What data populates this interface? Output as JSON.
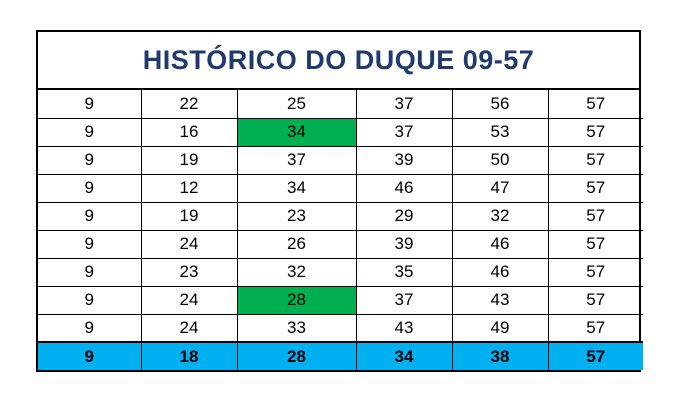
{
  "sheet": {
    "title": "HISTÓRICO DO DUQUE 09-57",
    "colors": {
      "title_text": "#1f3a6e",
      "highlight_green": "#00b050",
      "summary_row": "#00b0f0",
      "border": "#000000"
    },
    "rows": [
      {
        "cells": [
          "9",
          "22",
          "25",
          "37",
          "56",
          "57"
        ],
        "highlight": []
      },
      {
        "cells": [
          "9",
          "16",
          "34",
          "37",
          "53",
          "57"
        ],
        "highlight": [
          2
        ]
      },
      {
        "cells": [
          "9",
          "19",
          "37",
          "39",
          "50",
          "57"
        ],
        "highlight": []
      },
      {
        "cells": [
          "9",
          "12",
          "34",
          "46",
          "47",
          "57"
        ],
        "highlight": []
      },
      {
        "cells": [
          "9",
          "19",
          "23",
          "29",
          "32",
          "57"
        ],
        "highlight": []
      },
      {
        "cells": [
          "9",
          "24",
          "26",
          "39",
          "46",
          "57"
        ],
        "highlight": []
      },
      {
        "cells": [
          "9",
          "23",
          "32",
          "35",
          "46",
          "57"
        ],
        "highlight": []
      },
      {
        "cells": [
          "9",
          "24",
          "28",
          "37",
          "43",
          "57"
        ],
        "highlight": [
          2
        ]
      },
      {
        "cells": [
          "9",
          "24",
          "33",
          "43",
          "49",
          "57"
        ],
        "highlight": []
      }
    ],
    "summary": {
      "cells": [
        "9",
        "18",
        "28",
        "34",
        "38",
        "57"
      ]
    }
  }
}
